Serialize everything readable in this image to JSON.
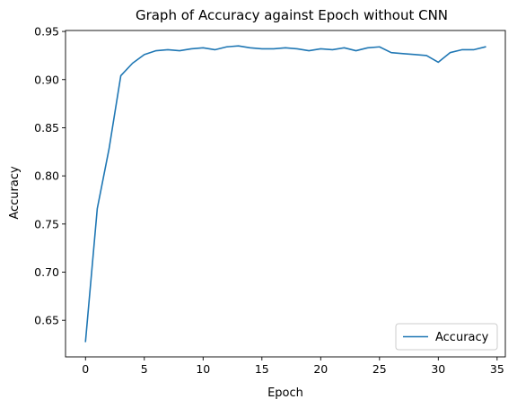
{
  "chart_data": {
    "type": "line",
    "title": "Graph of Accuracy against Epoch without CNN",
    "xlabel": "Epoch",
    "ylabel": "Accuracy",
    "xlim": [
      -1.7,
      35.7
    ],
    "ylim": [
      0.612,
      0.951
    ],
    "xticks": [
      0,
      5,
      10,
      15,
      20,
      25,
      30,
      35
    ],
    "yticks": [
      0.65,
      0.7,
      0.75,
      0.8,
      0.85,
      0.9,
      0.95
    ],
    "ytick_labels": [
      "0.65",
      "0.70",
      "0.75",
      "0.80",
      "0.85",
      "0.90",
      "0.95"
    ],
    "grid": false,
    "legend_position": "lower-right",
    "series": [
      {
        "name": "Accuracy",
        "color": "#1f77b4",
        "x": [
          0,
          1,
          2,
          3,
          4,
          5,
          6,
          7,
          8,
          9,
          10,
          11,
          12,
          13,
          14,
          15,
          16,
          17,
          18,
          19,
          20,
          21,
          22,
          23,
          24,
          25,
          26,
          27,
          28,
          29,
          30,
          31,
          32,
          33,
          34
        ],
        "values": [
          0.628,
          0.766,
          0.828,
          0.904,
          0.917,
          0.926,
          0.93,
          0.931,
          0.93,
          0.932,
          0.933,
          0.931,
          0.934,
          0.935,
          0.933,
          0.932,
          0.932,
          0.933,
          0.932,
          0.93,
          0.932,
          0.931,
          0.933,
          0.93,
          0.933,
          0.934,
          0.928,
          0.927,
          0.926,
          0.925,
          0.918,
          0.928,
          0.931,
          0.931,
          0.934
        ]
      }
    ]
  }
}
